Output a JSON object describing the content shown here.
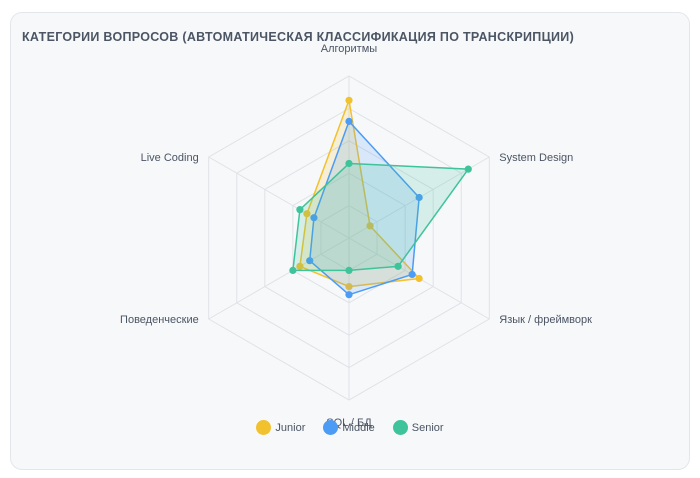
{
  "chart_data": {
    "type": "radar",
    "title": "КАТЕГОРИИ ВОПРОСОВ (АВТОМАТИЧЕСКАЯ КЛАССИФИКАЦИЯ ПО ТРАНСКРИПЦИИ)",
    "categories": [
      "Алгоритмы",
      "System Design",
      "Язык / фреймворк",
      "SQL / БД",
      "Поведенческие",
      "Live Coding"
    ],
    "range": [
      0,
      100
    ],
    "grid": true,
    "legend_position": "bottom",
    "series": [
      {
        "name": "Junior",
        "color": "#f2c12e",
        "values": [
          85,
          15,
          50,
          30,
          35,
          30
        ]
      },
      {
        "name": "Middle",
        "color": "#4c9bf5",
        "values": [
          72,
          50,
          45,
          35,
          28,
          25
        ]
      },
      {
        "name": "Senior",
        "color": "#3ec39a",
        "values": [
          46,
          85,
          35,
          20,
          40,
          35
        ]
      }
    ]
  }
}
